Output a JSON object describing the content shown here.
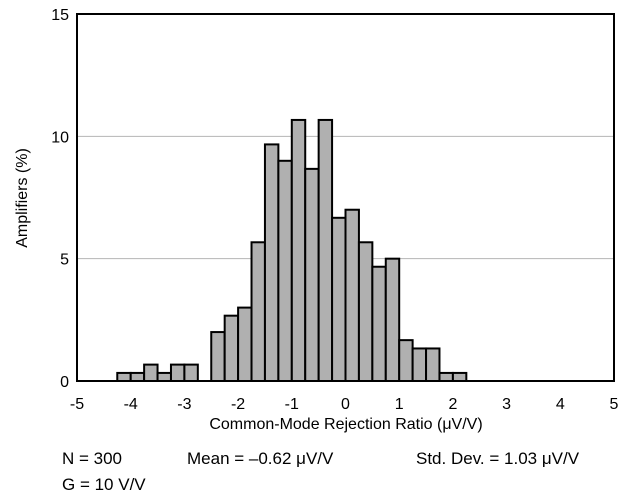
{
  "chart_data": {
    "type": "bar",
    "xlabel": "Common-Mode Rejection Ratio (μV/V)",
    "ylabel": "Amplifiers (%)",
    "xlim": [
      -5,
      5
    ],
    "ylim": [
      0,
      15
    ],
    "x_ticks": [
      "-5",
      "-4",
      "-3",
      "-2",
      "-1",
      "0",
      "1",
      "2",
      "3",
      "4",
      "5"
    ],
    "y_ticks": [
      "0",
      "5",
      "10",
      "15"
    ],
    "grid": "horizontal",
    "bin_width": 0.25,
    "bins": [
      {
        "x": -4.125,
        "y": 0.33
      },
      {
        "x": -3.875,
        "y": 0.33
      },
      {
        "x": -3.625,
        "y": 0.67
      },
      {
        "x": -3.375,
        "y": 0.33
      },
      {
        "x": -3.125,
        "y": 0.67
      },
      {
        "x": -2.875,
        "y": 0.67
      },
      {
        "x": -2.375,
        "y": 2.0
      },
      {
        "x": -2.125,
        "y": 2.67
      },
      {
        "x": -1.875,
        "y": 3.0
      },
      {
        "x": -1.625,
        "y": 5.67
      },
      {
        "x": -1.375,
        "y": 9.67
      },
      {
        "x": -1.125,
        "y": 9.0
      },
      {
        "x": -0.875,
        "y": 10.67
      },
      {
        "x": -0.625,
        "y": 8.67
      },
      {
        "x": -0.375,
        "y": 10.67
      },
      {
        "x": -0.125,
        "y": 6.67
      },
      {
        "x": 0.125,
        "y": 7.0
      },
      {
        "x": 0.375,
        "y": 5.67
      },
      {
        "x": 0.625,
        "y": 4.67
      },
      {
        "x": 0.875,
        "y": 5.0
      },
      {
        "x": 1.125,
        "y": 1.67
      },
      {
        "x": 1.375,
        "y": 1.33
      },
      {
        "x": 1.625,
        "y": 1.33
      },
      {
        "x": 1.875,
        "y": 0.33
      },
      {
        "x": 2.125,
        "y": 0.33
      }
    ],
    "bar_color": "#b0b0b0"
  },
  "notes": {
    "n": "N = 300",
    "mean": "Mean = –0.62 μV/V",
    "std": "Std. Dev. = 1.03 μV/V",
    "gain": "G = 10 V/V"
  }
}
